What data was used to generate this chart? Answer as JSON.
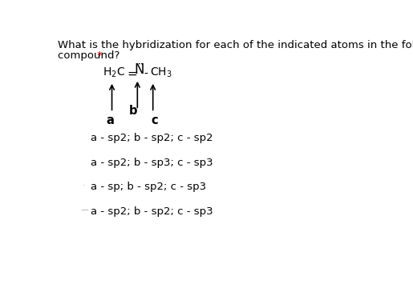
{
  "title_line1": "What is the hybridization for each of the indicated atoms in the following",
  "title_line2": "compound?",
  "asterisk": "*",
  "bg_color": "#ffffff",
  "text_color": "#000000",
  "asterisk_color": "#cc0000",
  "options": [
    "a - sp2; b - sp2; c - sp2",
    "a - sp2; b - sp3; c - sp3",
    "a - sp; b - sp2; c - sp3",
    "a - sp2; b - sp2; c - sp3"
  ],
  "title_fontsize": 9.5,
  "option_fontsize": 9.5,
  "mol_fontsize": 10.0,
  "label_fontsize": 10.5
}
